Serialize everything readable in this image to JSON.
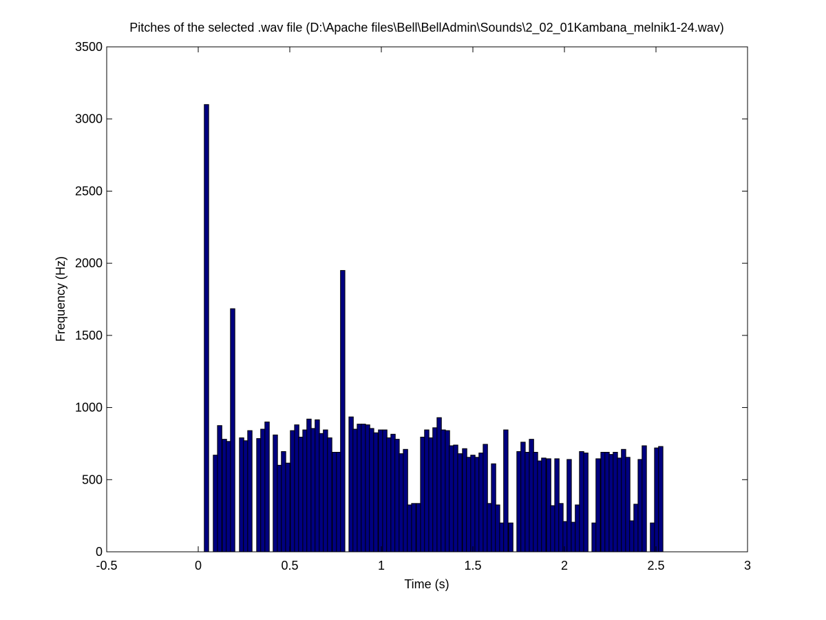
{
  "chart_data": {
    "type": "bar",
    "title": "Pitches of the selected .wav file (D:\\Apache files\\Bell\\BellAdmin\\Sounds\\2_02_01Kambana_melnik1-24.wav)",
    "x_label": "Time (s)",
    "y_label": "Frequency (Hz)",
    "x": [
      0.045,
      0.094,
      0.117,
      0.143,
      0.165,
      0.188,
      0.237,
      0.259,
      0.282,
      0.331,
      0.353,
      0.376,
      0.421,
      0.444,
      0.466,
      0.489,
      0.515,
      0.538,
      0.56,
      0.583,
      0.605,
      0.628,
      0.65,
      0.673,
      0.695,
      0.718,
      0.744,
      0.767,
      0.789,
      0.835,
      0.857,
      0.88,
      0.902,
      0.925,
      0.947,
      0.97,
      0.996,
      1.019,
      1.041,
      1.064,
      1.086,
      1.109,
      1.132,
      1.154,
      1.177,
      1.203,
      1.226,
      1.248,
      1.271,
      1.293,
      1.316,
      1.338,
      1.361,
      1.383,
      1.406,
      1.429,
      1.455,
      1.477,
      1.5,
      1.523,
      1.545,
      1.568,
      1.59,
      1.613,
      1.635,
      1.658,
      1.68,
      1.707,
      1.752,
      1.774,
      1.797,
      1.82,
      1.842,
      1.865,
      1.887,
      1.914,
      1.936,
      1.959,
      1.981,
      2.004,
      2.026,
      2.049,
      2.071,
      2.094,
      2.117,
      2.162,
      2.184,
      2.211,
      2.233,
      2.256,
      2.278,
      2.301,
      2.323,
      2.346,
      2.368,
      2.391,
      2.414,
      2.436,
      2.481,
      2.504,
      2.526
    ],
    "values": [
      3100,
      670,
      875,
      780,
      765,
      1685,
      790,
      770,
      840,
      785,
      850,
      900,
      810,
      600,
      695,
      615,
      840,
      880,
      795,
      845,
      920,
      855,
      915,
      820,
      845,
      790,
      690,
      690,
      1950,
      935,
      850,
      885,
      885,
      880,
      855,
      825,
      845,
      845,
      790,
      815,
      780,
      680,
      710,
      325,
      335,
      335,
      795,
      845,
      790,
      860,
      930,
      845,
      840,
      735,
      740,
      680,
      715,
      655,
      670,
      655,
      685,
      745,
      335,
      610,
      325,
      200,
      845,
      200,
      695,
      760,
      690,
      780,
      690,
      630,
      650,
      645,
      320,
      645,
      335,
      210,
      640,
      205,
      325,
      695,
      685,
      200,
      645,
      690,
      690,
      675,
      690,
      650,
      710,
      655,
      215,
      330,
      640,
      735,
      200,
      720,
      730
    ],
    "color": "#000080",
    "xlim": [
      -0.5,
      3
    ],
    "xticks": [
      -0.5,
      0,
      0.5,
      1,
      1.5,
      2,
      2.5,
      3
    ],
    "ylim": [
      0,
      3500
    ],
    "yticks": [
      0,
      500,
      1000,
      1500,
      2000,
      2500,
      3000,
      3500
    ]
  }
}
